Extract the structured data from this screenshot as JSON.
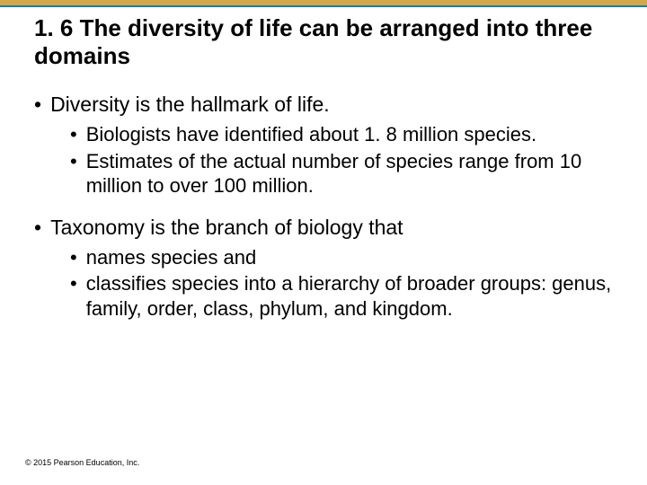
{
  "colors": {
    "top_bar": "#d4a84a",
    "divider": "#1a8099",
    "background": "#ffffff",
    "text": "#000000"
  },
  "title": "1. 6 The diversity of life can be arranged into three domains",
  "bullets": {
    "b1": "Diversity is the hallmark of life.",
    "b1_1": "Biologists have identified about 1. 8 million species.",
    "b1_2": "Estimates of the actual number of species range from 10 million to over 100 million.",
    "b2": "Taxonomy is the branch of biology that",
    "b2_1": "names species and",
    "b2_2": "classifies species into a hierarchy of broader groups: genus, family, order, class, phylum, and kingdom."
  },
  "copyright": "© 2015 Pearson Education, Inc."
}
